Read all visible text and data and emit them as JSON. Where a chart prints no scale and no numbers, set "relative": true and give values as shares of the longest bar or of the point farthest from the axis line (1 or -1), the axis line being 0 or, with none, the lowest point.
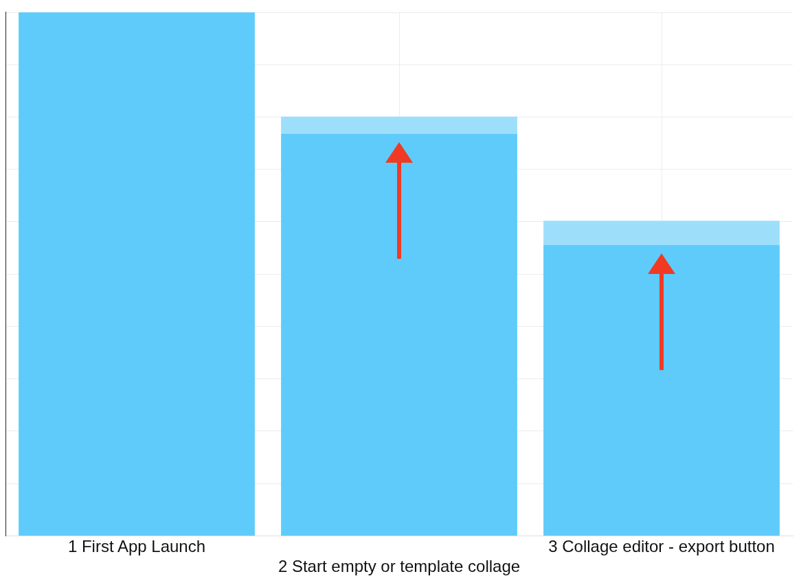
{
  "chart_data": {
    "type": "bar",
    "relative": true,
    "stacked": true,
    "grid": true,
    "legend": false,
    "categories": [
      "1 First App Launch",
      "2 Start empty or template collage",
      "3 Collage editor - export button"
    ],
    "series": [
      {
        "color": "#5ecbfb",
        "values": [
          1,
          0.768,
          0.556
        ]
      },
      {
        "color": "#9ddffb",
        "values": [
          0,
          0.033,
          0.046
        ]
      }
    ]
  }
}
